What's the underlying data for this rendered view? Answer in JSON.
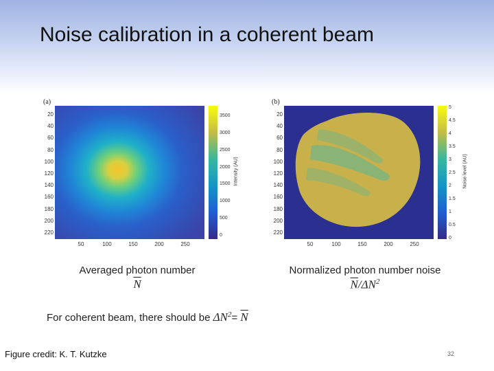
{
  "slide": {
    "title": "Noise calibration in a coherent beam",
    "credit": "Figure credit: K. T. Kutzke",
    "page_number": "32"
  },
  "panel_a": {
    "letter": "(a)",
    "y_ticks": [
      "20",
      "40",
      "60",
      "80",
      "100",
      "120",
      "140",
      "160",
      "180",
      "200",
      "220"
    ],
    "x_ticks": [
      "50",
      "100",
      "150",
      "200",
      "250"
    ],
    "colorbar_ticks": [
      "3500",
      "3000",
      "2500",
      "2000",
      "1500",
      "1000",
      "500",
      "0"
    ],
    "colorbar_label": "Intensity (AU)",
    "caption": "Averaged photon number",
    "formula_symbol": "N"
  },
  "panel_b": {
    "letter": "(b)",
    "y_ticks": [
      "20",
      "40",
      "60",
      "80",
      "100",
      "120",
      "140",
      "160",
      "180",
      "200",
      "220"
    ],
    "x_ticks": [
      "50",
      "100",
      "150",
      "200",
      "250"
    ],
    "colorbar_ticks": [
      "5",
      "4.5",
      "4",
      "3.5",
      "3",
      "2.5",
      "2",
      "1.5",
      "1",
      "0.5",
      "0"
    ],
    "colorbar_label": "Noise level (AU)",
    "caption": "Normalized photon number noise",
    "formula_n": "N",
    "formula_sep": "/ΔN",
    "formula_exp": "2"
  },
  "note": {
    "text": "For coherent beam, there should be ",
    "lhs": "ΔN",
    "lhs_exp": "2",
    "eq": "= ",
    "rhs": "N"
  },
  "colors": {
    "map_background": "#2b2f8f",
    "noise_fill": "#c8b04a",
    "noise_stripe": "#57b79a"
  }
}
